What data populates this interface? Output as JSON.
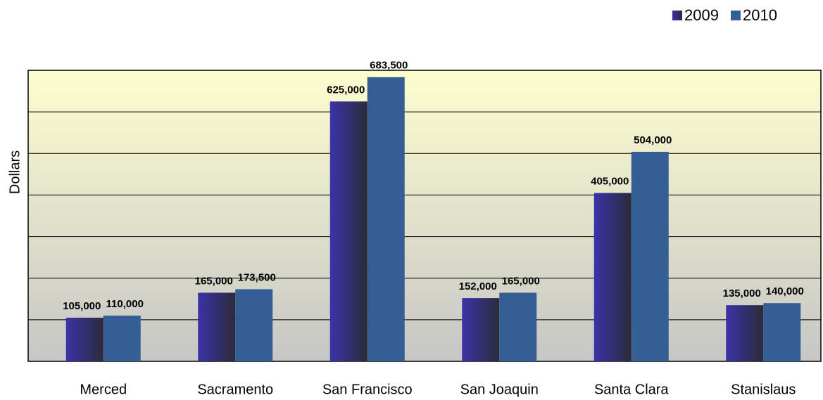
{
  "chart_data": {
    "type": "bar",
    "y_label": "Dollars",
    "categories": [
      "Merced",
      "Sacramento",
      "San Francisco",
      "San Joaquin",
      "Santa Clara",
      "Stanislaus"
    ],
    "series": [
      {
        "name": "2009",
        "color": "#34308f",
        "values": [
          105000,
          165000,
          625000,
          152000,
          405000,
          135000
        ],
        "value_labels": [
          "105,000",
          "165,000",
          "625,000",
          "152,000",
          "405,000",
          "135,000"
        ]
      },
      {
        "name": "2010",
        "color": "#355f94",
        "values": [
          110000,
          173500,
          683500,
          165000,
          504000,
          140000
        ],
        "value_labels": [
          "110,000",
          "173,500",
          "683,500",
          "165,000",
          "504,000",
          "140,000"
        ]
      }
    ],
    "ylim": [
      0,
      700000
    ],
    "yticks": [
      0,
      100000,
      200000,
      300000,
      400000,
      500000,
      600000,
      700000
    ],
    "grid": true,
    "legend": "top-right"
  }
}
